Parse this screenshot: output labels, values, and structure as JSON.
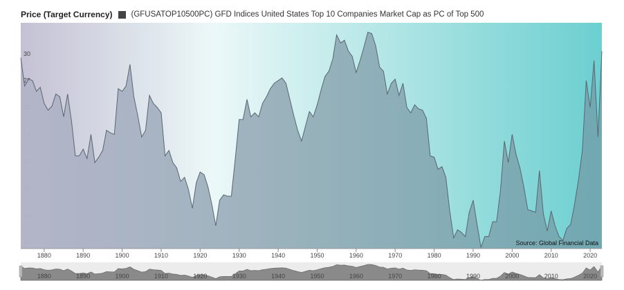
{
  "header": {
    "price_label": "Price (Target Currency)",
    "series_label": "(GFUSATOP10500PC) GFD Indices United States Top 10 Companies Market Cap as PC of Top 500"
  },
  "source_note": "Source: Global Financial Data",
  "colors": {
    "line": "#5a6570",
    "gradient_left": "#c4c1d4",
    "gradient_mid": "#ecf8f8",
    "gradient_right": "#6ccfd0"
  },
  "chart_data": {
    "type": "area",
    "title": "",
    "xlabel": "",
    "ylabel": "",
    "xlim": [
      1874,
      2023
    ],
    "ylim": [
      15.5,
      32.3
    ],
    "yticks": [
      16,
      18,
      20,
      22,
      24,
      26,
      28,
      30
    ],
    "xticks": [
      1880,
      1890,
      1900,
      1910,
      1920,
      1930,
      1940,
      1950,
      1960,
      1970,
      1980,
      1990,
      2000,
      2010,
      2020
    ],
    "grid": false,
    "legend": "top-left",
    "series": [
      {
        "name": "(GFUSATOP10500PC) GFD Indices United States Top 10 Companies Market Cap as PC of Top 500",
        "x": [
          1874,
          1875,
          1876,
          1877,
          1878,
          1879,
          1880,
          1881,
          1882,
          1883,
          1884,
          1885,
          1886,
          1887,
          1888,
          1889,
          1890,
          1891,
          1892,
          1893,
          1894,
          1895,
          1896,
          1897,
          1898,
          1899,
          1900,
          1901,
          1902,
          1903,
          1904,
          1905,
          1906,
          1907,
          1908,
          1909,
          1910,
          1911,
          1912,
          1913,
          1914,
          1915,
          1916,
          1917,
          1918,
          1919,
          1920,
          1921,
          1922,
          1923,
          1924,
          1925,
          1926,
          1927,
          1928,
          1929,
          1930,
          1931,
          1932,
          1933,
          1934,
          1935,
          1936,
          1937,
          1938,
          1939,
          1940,
          1941,
          1942,
          1943,
          1944,
          1945,
          1946,
          1947,
          1948,
          1949,
          1950,
          1951,
          1952,
          1953,
          1954,
          1955,
          1956,
          1957,
          1958,
          1959,
          1960,
          1961,
          1962,
          1963,
          1964,
          1965,
          1966,
          1967,
          1968,
          1969,
          1970,
          1971,
          1972,
          1973,
          1974,
          1975,
          1976,
          1977,
          1978,
          1979,
          1980,
          1981,
          1982,
          1983,
          1984,
          1985,
          1986,
          1987,
          1988,
          1989,
          1990,
          1991,
          1992,
          1993,
          1994,
          1995,
          1996,
          1997,
          1998,
          1999,
          2000,
          2001,
          2002,
          2003,
          2004,
          2005,
          2006,
          2007,
          2008,
          2009,
          2010,
          2011,
          2012,
          2013,
          2014,
          2015,
          2016,
          2017,
          2018,
          2019,
          2020,
          2021,
          2022,
          2023
        ],
        "values": [
          29.7,
          27.6,
          28.1,
          28.0,
          27.2,
          27.5,
          26.3,
          25.8,
          26.1,
          27.0,
          26.8,
          25.3,
          27.0,
          25.0,
          22.4,
          22.4,
          22.9,
          22.2,
          24.0,
          21.9,
          22.3,
          22.8,
          24.3,
          24.1,
          24.0,
          27.4,
          27.2,
          27.6,
          29.2,
          26.8,
          25.4,
          23.8,
          24.3,
          26.9,
          26.3,
          26.0,
          25.6,
          22.4,
          22.8,
          21.9,
          21.5,
          20.5,
          20.8,
          19.9,
          18.5,
          20.4,
          21.2,
          21.0,
          20.1,
          18.8,
          17.2,
          19.1,
          19.5,
          19.4,
          19.4,
          22.2,
          25.1,
          25.1,
          26.6,
          25.3,
          25.6,
          25.3,
          26.3,
          26.8,
          27.4,
          27.8,
          28.0,
          28.2,
          27.8,
          26.6,
          25.4,
          24.3,
          23.5,
          24.6,
          25.7,
          25.3,
          26.2,
          27.3,
          28.3,
          28.7,
          29.6,
          31.4,
          30.8,
          31.0,
          30.2,
          29.8,
          28.6,
          29.5,
          30.5,
          31.6,
          31.5,
          30.6,
          29.0,
          28.7,
          27.0,
          27.8,
          28.1,
          26.9,
          27.8,
          26.0,
          25.6,
          26.2,
          25.9,
          25.8,
          25.2,
          22.4,
          22.3,
          21.4,
          21.6,
          20.8,
          18.3,
          16.3,
          16.9,
          16.7,
          16.4,
          18.2,
          19.1,
          17.3,
          15.6,
          16.4,
          16.4,
          17.5,
          17.5,
          19.8,
          23.5,
          21.9,
          24.0,
          22.5,
          21.5,
          20.1,
          18.4,
          18.3,
          18.2,
          21.3,
          18.1,
          16.8,
          18.3,
          17.2,
          16.4,
          16.1,
          17.0,
          17.3,
          18.8,
          20.6,
          22.8,
          28.0,
          26.0,
          29.5,
          23.8,
          30.2
        ]
      }
    ]
  },
  "navigator": {
    "xticks": [
      1880,
      1890,
      1900,
      1910,
      1920,
      1930,
      1940,
      1950,
      1960,
      1970,
      1980,
      1990,
      2000,
      2010,
      2020
    ]
  }
}
